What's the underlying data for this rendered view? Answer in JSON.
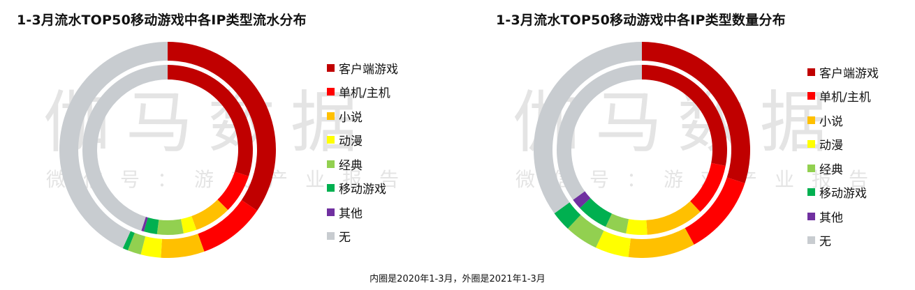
{
  "watermark": {
    "main": "伽马数据",
    "sub": "微信号：游戏产业报告"
  },
  "categories": [
    "客户端游戏",
    "单机/主机",
    "小说",
    "动漫",
    "经典",
    "移动游戏",
    "其他",
    "无"
  ],
  "colors": [
    "#c00000",
    "#ff0000",
    "#ffc000",
    "#ffff00",
    "#92d050",
    "#00b050",
    "#7030a0",
    "#c8ccd0"
  ],
  "footnote": "内圈是2020年1-3月，外圈是2021年1-3月",
  "chart_data": [
    {
      "type": "donut",
      "title": "1-3月流水TOP50移动游戏中各IP类型流水分布",
      "categories": [
        "客户端游戏",
        "单机/主机",
        "小说",
        "动漫",
        "经典",
        "移动游戏",
        "其他",
        "无"
      ],
      "series": [
        {
          "period": "2021年1-3月",
          "ring": "outer",
          "values": [
            34.5,
            10.0,
            6.5,
            3.0,
            2.0,
            0.8,
            0,
            43.2
          ]
        },
        {
          "period": "2020年1-3月",
          "ring": "inner",
          "values": [
            30.0,
            7.5,
            7.0,
            2.5,
            5.0,
            2.5,
            0.5,
            45.0
          ]
        }
      ]
    },
    {
      "type": "donut",
      "title": "1-3月流水TOP50移动游戏中各IP类型数量分布",
      "categories": [
        "客户端游戏",
        "单机/主机",
        "小说",
        "动漫",
        "经典",
        "移动游戏",
        "其他",
        "无"
      ],
      "series": [
        {
          "period": "2021年1-3月",
          "ring": "outer",
          "values": [
            30,
            12,
            10,
            5,
            5,
            3,
            0,
            35
          ]
        },
        {
          "period": "2020年1-3月",
          "ring": "inner",
          "values": [
            28,
            10,
            11,
            4,
            4,
            6,
            2,
            35
          ]
        }
      ]
    }
  ]
}
